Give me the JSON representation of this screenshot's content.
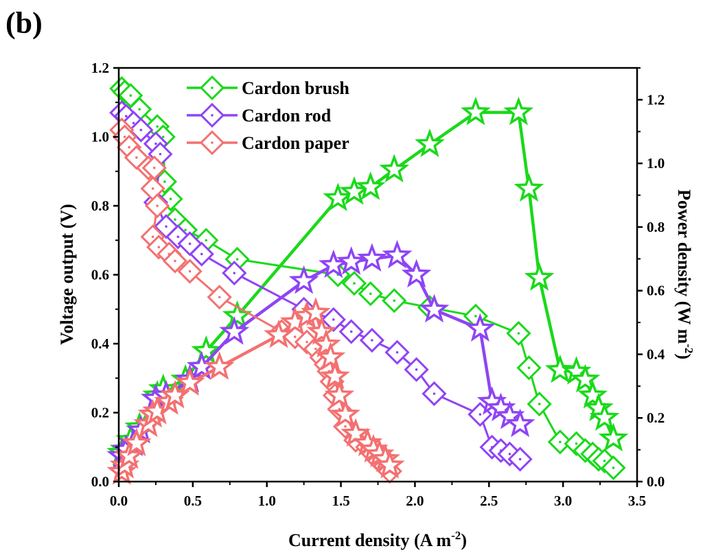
{
  "chart_data": {
    "type": "line",
    "panel_label": "(b)",
    "title": "",
    "xlabel": "Current density (A m",
    "xlabel_sup": "-2",
    "xlabel_end": ")",
    "ylabel": "Voltage output (V)",
    "y2label": "Power density (W m",
    "y2label_sup": "-2",
    "y2label_end": ")",
    "xlim": [
      0.0,
      3.5
    ],
    "ylim": [
      0.0,
      1.2
    ],
    "y2lim": [
      0.0,
      1.3
    ],
    "xticks": [
      "0.0",
      "0.5",
      "1.0",
      "1.5",
      "2.0",
      "2.5",
      "3.0",
      "3.5"
    ],
    "yticks": [
      "0.0",
      "0.2",
      "0.4",
      "0.6",
      "0.8",
      "1.0",
      "1.2"
    ],
    "y2ticks": [
      "0.0",
      "0.2",
      "0.4",
      "0.6",
      "0.8",
      "1.0",
      "1.2"
    ],
    "grid": false,
    "legend_position": "top-left",
    "legend": [
      "Cardon brush",
      "Cardon rod",
      "Cardon paper"
    ],
    "series": [
      {
        "name": "Cardon brush",
        "color": "#1ad91a",
        "voltage": {
          "marker": "diamond",
          "x": [
            0.02,
            0.04,
            0.08,
            0.14,
            0.26,
            0.3,
            0.31,
            0.35,
            0.38,
            0.45,
            0.59,
            0.8,
            1.48,
            1.59,
            1.7,
            1.86,
            2.1,
            2.41,
            2.7,
            2.77,
            2.84,
            2.98,
            3.09,
            3.15,
            3.2,
            3.24,
            3.28,
            3.34
          ],
          "y": [
            1.14,
            1.13,
            1.12,
            1.08,
            1.03,
            1.0,
            0.87,
            0.82,
            0.76,
            0.73,
            0.7,
            0.645,
            0.6,
            0.575,
            0.545,
            0.525,
            0.505,
            0.48,
            0.43,
            0.33,
            0.225,
            0.115,
            0.11,
            0.09,
            0.08,
            0.065,
            0.06,
            0.04
          ]
        },
        "power": {
          "marker": "star",
          "x": [
            0.02,
            0.04,
            0.08,
            0.14,
            0.26,
            0.3,
            0.45,
            0.59,
            0.8,
            1.48,
            1.59,
            1.7,
            1.86,
            2.1,
            2.41,
            2.7,
            2.77,
            2.84,
            2.98,
            3.09,
            3.15,
            3.2,
            3.24,
            3.28,
            3.34
          ],
          "y": [
            0.09,
            0.1,
            0.13,
            0.17,
            0.27,
            0.29,
            0.32,
            0.41,
            0.52,
            0.89,
            0.91,
            0.925,
            0.98,
            1.06,
            1.16,
            1.16,
            0.92,
            0.64,
            0.35,
            0.345,
            0.32,
            0.27,
            0.23,
            0.2,
            0.135
          ]
        }
      },
      {
        "name": "Cardon rod",
        "color": "#8f44f5",
        "voltage": {
          "marker": "diamond",
          "x": [
            0.02,
            0.05,
            0.1,
            0.15,
            0.25,
            0.28,
            0.25,
            0.32,
            0.4,
            0.48,
            0.56,
            0.78,
            1.25,
            1.45,
            1.57,
            1.71,
            1.88,
            2.01,
            2.13,
            2.44,
            2.52,
            2.58,
            2.64,
            2.71
          ],
          "y": [
            1.07,
            1.06,
            1.04,
            1.02,
            0.98,
            0.95,
            0.81,
            0.74,
            0.71,
            0.69,
            0.66,
            0.605,
            0.5,
            0.47,
            0.435,
            0.41,
            0.375,
            0.325,
            0.255,
            0.195,
            0.1,
            0.09,
            0.08,
            0.065
          ]
        },
        "power": {
          "marker": "star",
          "x": [
            0.02,
            0.05,
            0.1,
            0.15,
            0.25,
            0.32,
            0.48,
            0.56,
            0.78,
            1.25,
            1.45,
            1.57,
            1.71,
            1.88,
            2.01,
            2.13,
            2.44,
            2.52,
            2.58,
            2.64,
            2.71
          ],
          "y": [
            0.08,
            0.1,
            0.12,
            0.16,
            0.26,
            0.27,
            0.32,
            0.36,
            0.47,
            0.63,
            0.68,
            0.69,
            0.7,
            0.71,
            0.65,
            0.54,
            0.48,
            0.25,
            0.23,
            0.205,
            0.18
          ]
        }
      },
      {
        "name": "Cardon paper",
        "color": "#f47070",
        "voltage": {
          "marker": "diamond",
          "x": [
            0.02,
            0.04,
            0.07,
            0.12,
            0.2,
            0.24,
            0.23,
            0.26,
            0.23,
            0.27,
            0.34,
            0.38,
            0.48,
            0.68,
            1.1,
            1.19,
            1.27,
            1.33,
            1.37,
            1.4,
            1.42,
            1.44,
            1.46,
            1.49,
            1.53,
            1.6,
            1.68,
            1.72,
            1.76,
            1.8,
            1.83
          ],
          "y": [
            1.02,
            1.0,
            0.97,
            0.94,
            0.91,
            0.91,
            0.85,
            0.8,
            0.71,
            0.68,
            0.66,
            0.64,
            0.61,
            0.535,
            0.435,
            0.42,
            0.405,
            0.385,
            0.36,
            0.34,
            0.32,
            0.29,
            0.25,
            0.21,
            0.16,
            0.12,
            0.1,
            0.08,
            0.06,
            0.045,
            0.03
          ]
        },
        "power": {
          "marker": "star",
          "x": [
            0.02,
            0.04,
            0.07,
            0.12,
            0.2,
            0.23,
            0.26,
            0.34,
            0.38,
            0.48,
            0.68,
            1.08,
            1.19,
            1.27,
            1.33,
            1.37,
            1.4,
            1.43,
            1.46,
            1.49,
            1.53,
            1.6,
            1.68,
            1.72,
            1.76,
            1.8,
            1.83
          ],
          "y": [
            0.03,
            0.05,
            0.08,
            0.12,
            0.18,
            0.21,
            0.22,
            0.25,
            0.27,
            0.31,
            0.36,
            0.46,
            0.5,
            0.52,
            0.53,
            0.47,
            0.43,
            0.39,
            0.33,
            0.27,
            0.21,
            0.15,
            0.12,
            0.1,
            0.085,
            0.07,
            0.05
          ]
        }
      }
    ]
  }
}
